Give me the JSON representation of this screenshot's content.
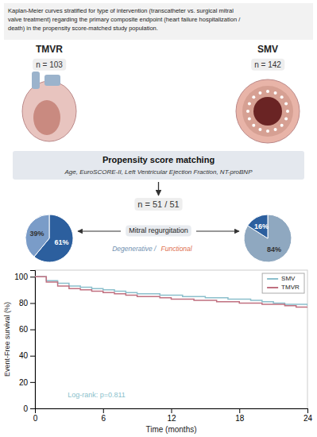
{
  "chart_data": [
    {
      "type": "pie",
      "title": "TMVR",
      "subtitle": "n = 103",
      "values": [
        61,
        39
      ],
      "value_labels": [
        "61%",
        "39%"
      ],
      "colors": [
        "#2c5f9e",
        "#7a9cc8"
      ],
      "data_labels": true
    },
    {
      "type": "pie",
      "title": "SMV",
      "subtitle": "n = 142",
      "values": [
        84,
        16
      ],
      "value_labels": [
        "84%",
        "16%"
      ],
      "colors": [
        "#8fa8c0",
        "#2c5f9e"
      ],
      "data_labels": true
    },
    {
      "type": "step",
      "title": "Kaplan-Meier curves stratified for type of intervention (transcatheter vs. surgical mitral\nvalve treatment) regarding the primary composite endpoint (heart failure hospitalization /\ndeath) in the propensity score-matched study population.",
      "annotations": [
        {
          "text": "Propensity score matching"
        },
        {
          "text": "Age, EuroSCORE-II, Left Ventricular Ejection Fraction, NT-proBNP"
        },
        {
          "text": "n = 51 / 51"
        },
        {
          "text": "Mitral regurgitation"
        },
        {
          "text": "Degenerative /",
          "color": "#7090b0"
        },
        {
          "text": "Functional",
          "color": "#e07050"
        },
        {
          "text": "Log-rank: p=0.811",
          "color": "#8bbfcc"
        }
      ],
      "x": [
        0,
        1,
        2,
        3,
        4,
        5,
        6,
        7,
        8,
        9,
        10,
        11,
        12,
        13,
        14,
        15,
        16,
        17,
        18,
        19,
        20,
        21,
        22,
        23,
        24
      ],
      "series": [
        {
          "name": "SMV",
          "color": "#8bbfcc",
          "values": [
            100,
            97,
            95,
            93,
            92,
            91,
            90,
            89,
            88,
            87,
            87,
            86,
            86,
            85,
            85,
            84,
            84,
            83,
            83,
            82,
            81,
            80,
            79,
            79,
            78
          ]
        },
        {
          "name": "TMVR",
          "color": "#c07080",
          "values": [
            100,
            96,
            93,
            91,
            90,
            89,
            88,
            87,
            86,
            85,
            85,
            84,
            83,
            83,
            82,
            82,
            81,
            81,
            80,
            80,
            79,
            79,
            78,
            77,
            77
          ]
        }
      ],
      "x_label": "Time (months)",
      "y_label": "Event-Free survival (%)",
      "xlim": [
        0,
        24
      ],
      "ylim": [
        0,
        105
      ],
      "xticks": [
        0,
        6,
        12,
        18,
        24
      ],
      "yticks": [
        0,
        20,
        40,
        60,
        80,
        100
      ],
      "grid": false,
      "legend": "upper right"
    }
  ]
}
